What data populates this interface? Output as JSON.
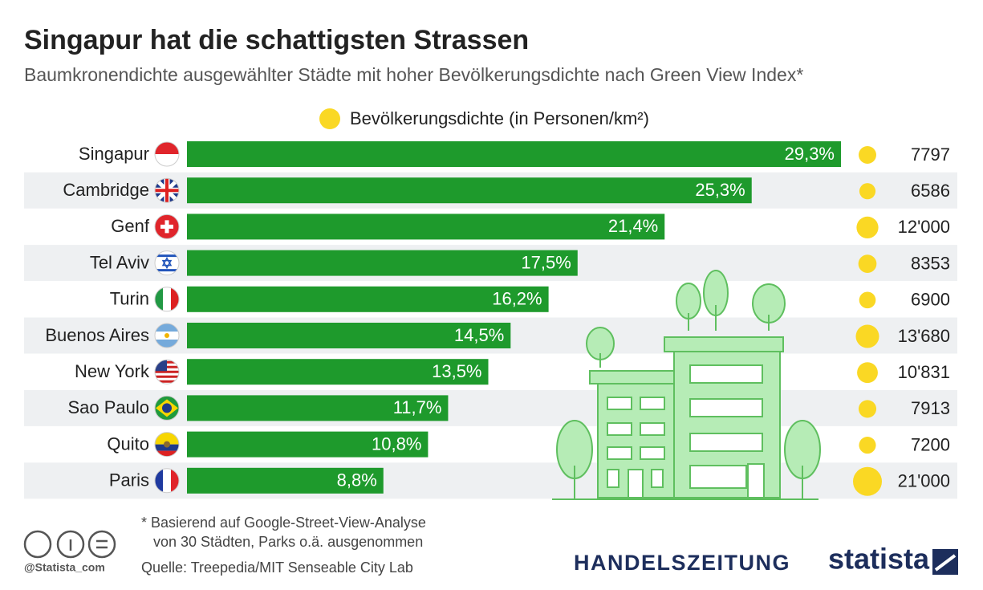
{
  "chart_data": {
    "type": "bar",
    "title": "Singapur hat die schattigsten Strassen",
    "subtitle": "Baumkronendichte ausgewählter Städte mit hoher Bevölkerungsdichte nach Green View Index*",
    "categories": [
      "Singapur",
      "Cambridge",
      "Genf",
      "Tel Aviv",
      "Turin",
      "Buenos Aires",
      "New York",
      "Sao Paulo",
      "Quito",
      "Paris"
    ],
    "values": [
      29.3,
      25.3,
      21.4,
      17.5,
      16.2,
      14.5,
      13.5,
      11.7,
      10.8,
      8.8
    ],
    "value_labels": [
      "29,3%",
      "25,3%",
      "21,4%",
      "17,5%",
      "16,2%",
      "14,5%",
      "13,5%",
      "11,7%",
      "10,8%",
      "8,8%"
    ],
    "color": "#1e9a2c",
    "density": {
      "name": "Bevölkerungsdichte (in Personen/km²)",
      "color": "#fad824",
      "values": [
        7797,
        6586,
        12000,
        8353,
        6900,
        13680,
        10831,
        7913,
        7200,
        21000
      ],
      "value_labels": [
        "7797",
        "6586",
        "12'000",
        "8353",
        "6900",
        "13'680",
        "10'831",
        "7913",
        "7200",
        "21'000"
      ]
    }
  },
  "footer": {
    "note": [
      "* Basierend auf Google-Street-View-Analyse",
      "von 30 Städten, Parks o.ä. ausgenommen"
    ],
    "source": "Quelle: Treepedia/MIT Senseable City Lab",
    "handle": "@Statista_com",
    "partner": "HANDELSZEITUNG",
    "brand": "statista"
  }
}
